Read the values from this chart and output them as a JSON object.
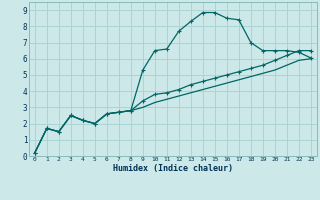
{
  "xlabel": "Humidex (Indice chaleur)",
  "bg_color": "#cce8e8",
  "grid_color": "#aad4d4",
  "line_color": "#006666",
  "xlim": [
    -0.5,
    23.5
  ],
  "ylim": [
    0,
    9.5
  ],
  "xticks": [
    0,
    1,
    2,
    3,
    4,
    5,
    6,
    7,
    8,
    9,
    10,
    11,
    12,
    13,
    14,
    15,
    16,
    17,
    18,
    19,
    20,
    21,
    22,
    23
  ],
  "yticks": [
    0,
    1,
    2,
    3,
    4,
    5,
    6,
    7,
    8,
    9
  ],
  "line1_x": [
    0,
    1,
    2,
    3,
    4,
    5,
    6,
    7,
    8,
    9,
    10,
    11,
    12,
    13,
    14,
    15,
    16,
    17,
    18,
    19,
    20,
    21,
    22,
    23
  ],
  "line1_y": [
    0.2,
    1.7,
    1.5,
    2.5,
    2.2,
    2.0,
    2.6,
    2.7,
    2.8,
    5.3,
    6.5,
    6.6,
    7.7,
    8.3,
    8.85,
    8.85,
    8.5,
    8.4,
    7.0,
    6.5,
    6.5,
    6.5,
    6.4,
    6.05
  ],
  "line2_x": [
    0,
    1,
    2,
    3,
    4,
    5,
    6,
    7,
    8,
    9,
    10,
    11,
    12,
    13,
    14,
    15,
    16,
    17,
    18,
    19,
    20,
    21,
    22,
    23
  ],
  "line2_y": [
    0.2,
    1.7,
    1.5,
    2.5,
    2.2,
    2.0,
    2.6,
    2.7,
    2.8,
    3.4,
    3.8,
    3.9,
    4.1,
    4.4,
    4.6,
    4.8,
    5.0,
    5.2,
    5.4,
    5.6,
    5.9,
    6.2,
    6.5,
    6.5
  ],
  "line3_x": [
    0,
    1,
    2,
    3,
    4,
    5,
    6,
    7,
    8,
    9,
    10,
    11,
    12,
    13,
    14,
    15,
    16,
    17,
    18,
    19,
    20,
    21,
    22,
    23
  ],
  "line3_y": [
    0.2,
    1.7,
    1.5,
    2.5,
    2.2,
    2.0,
    2.6,
    2.7,
    2.8,
    3.0,
    3.3,
    3.5,
    3.7,
    3.9,
    4.1,
    4.3,
    4.5,
    4.7,
    4.9,
    5.1,
    5.3,
    5.6,
    5.9,
    6.0
  ]
}
